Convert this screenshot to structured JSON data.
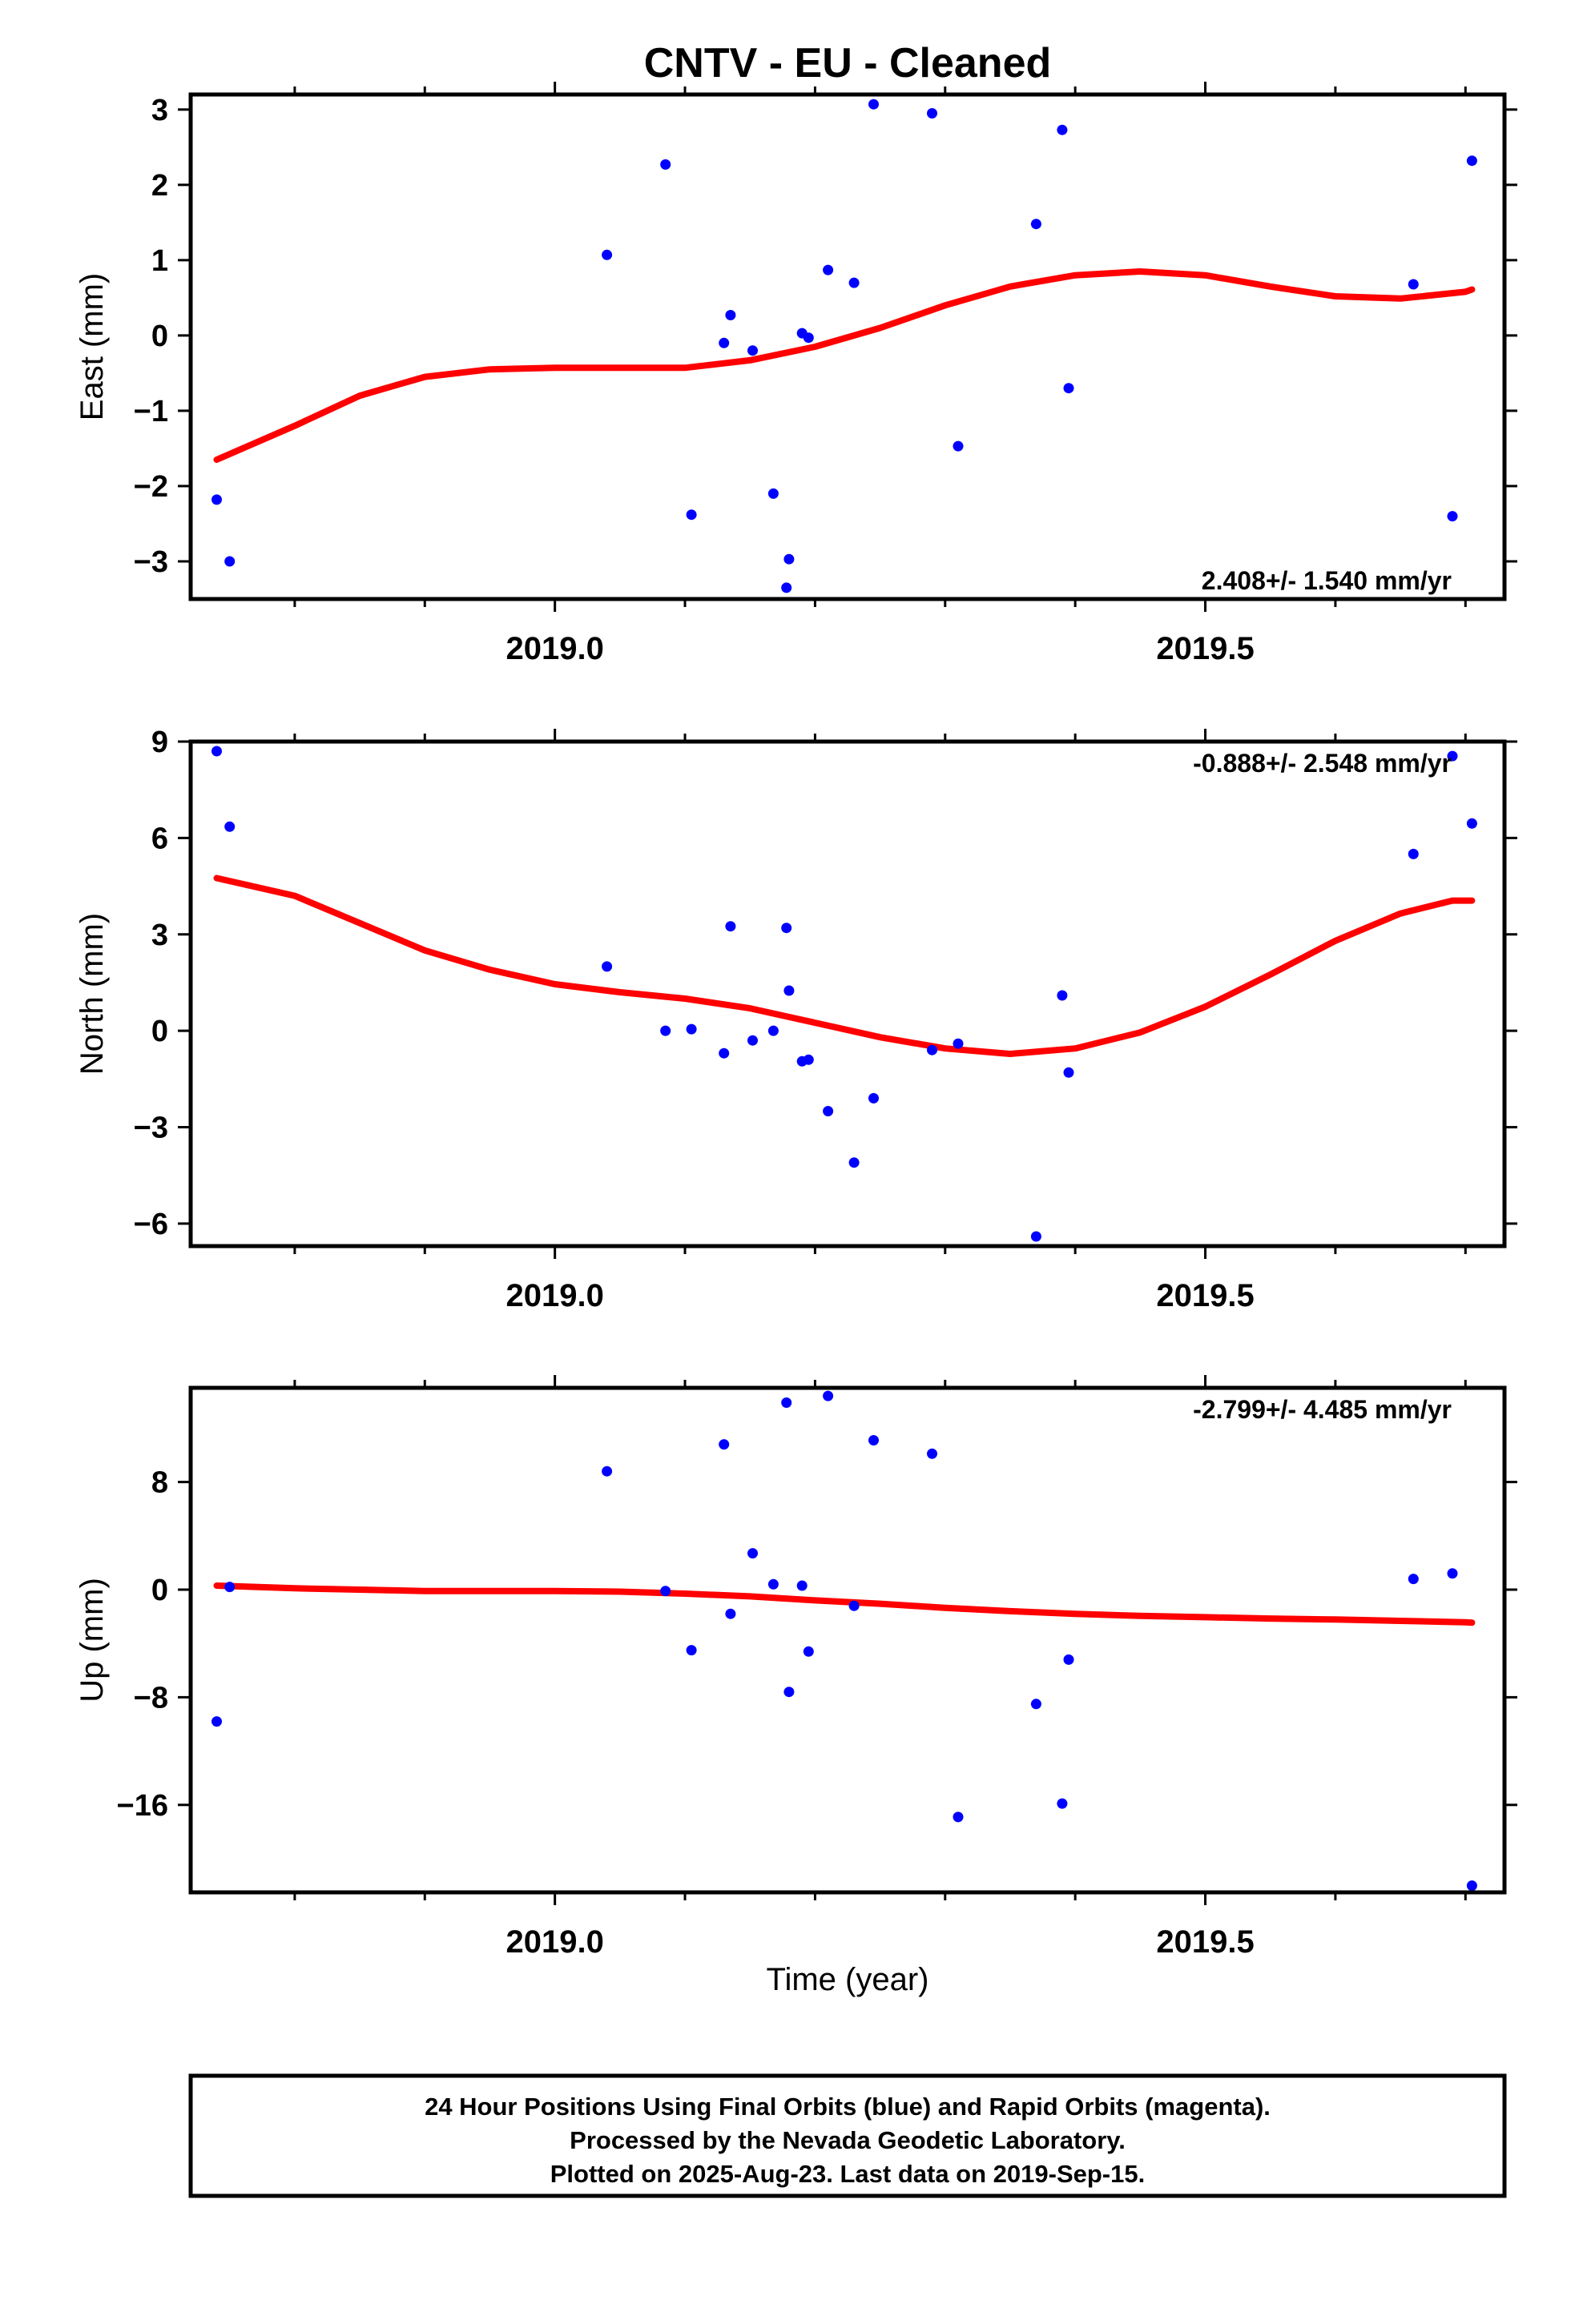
{
  "chart_data": {
    "type": "scatter",
    "title": "CNTV  - EU - Cleaned",
    "xlabel": "Time (year)",
    "xlim": [
      2018.72,
      2019.73
    ],
    "x_tick_labels": [
      "2019.0",
      "2019.5"
    ],
    "x_ticks": [
      2019.0,
      2019.5
    ],
    "x_minor_ticks": [
      2018.8,
      2018.9,
      2019.1,
      2019.2,
      2019.3,
      2019.4,
      2019.6,
      2019.7
    ],
    "grid": false,
    "colors": {
      "points": "#0000ff",
      "model": "#ff0000",
      "frame": "#000000"
    },
    "panels": [
      {
        "name": "east",
        "ylabel": "East (mm)",
        "ylim": [
          -3.5,
          3.2
        ],
        "yticks": [
          3,
          2,
          1,
          0,
          -1,
          -2,
          -3
        ],
        "ytick_labels": [
          "3",
          "2",
          "1",
          "0",
          "−1",
          "−2",
          "−3"
        ],
        "rate": "2.408+/- 1.540 mm/yr",
        "rate_position": "bottom-right",
        "points": [
          [
            2018.74,
            -2.18
          ],
          [
            2018.75,
            -3.0
          ],
          [
            2019.04,
            1.07
          ],
          [
            2019.085,
            2.27
          ],
          [
            2019.105,
            -2.38
          ],
          [
            2019.13,
            -0.1
          ],
          [
            2019.135,
            0.27
          ],
          [
            2019.152,
            -0.2
          ],
          [
            2019.168,
            -2.1
          ],
          [
            2019.18,
            -2.97
          ],
          [
            2019.178,
            -3.35
          ],
          [
            2019.19,
            0.03
          ],
          [
            2019.195,
            -0.03
          ],
          [
            2019.21,
            0.87
          ],
          [
            2019.23,
            0.7
          ],
          [
            2019.245,
            3.07
          ],
          [
            2019.29,
            2.95
          ],
          [
            2019.31,
            -1.47
          ],
          [
            2019.37,
            1.48
          ],
          [
            2019.39,
            2.73
          ],
          [
            2019.395,
            -0.7
          ],
          [
            2019.66,
            0.68
          ],
          [
            2019.69,
            -2.4
          ],
          [
            2019.705,
            2.32
          ]
        ],
        "model": [
          [
            2018.74,
            -1.65
          ],
          [
            2018.8,
            -1.2
          ],
          [
            2018.85,
            -0.8
          ],
          [
            2018.9,
            -0.55
          ],
          [
            2018.95,
            -0.45
          ],
          [
            2019.0,
            -0.43
          ],
          [
            2019.05,
            -0.43
          ],
          [
            2019.1,
            -0.43
          ],
          [
            2019.15,
            -0.33
          ],
          [
            2019.2,
            -0.15
          ],
          [
            2019.25,
            0.1
          ],
          [
            2019.3,
            0.4
          ],
          [
            2019.35,
            0.65
          ],
          [
            2019.4,
            0.8
          ],
          [
            2019.45,
            0.85
          ],
          [
            2019.5,
            0.8
          ],
          [
            2019.55,
            0.65
          ],
          [
            2019.6,
            0.52
          ],
          [
            2019.65,
            0.49
          ],
          [
            2019.7,
            0.58
          ],
          [
            2019.705,
            0.61
          ]
        ]
      },
      {
        "name": "north",
        "ylabel": "North (mm)",
        "ylim": [
          -6.7,
          9.0
        ],
        "yticks": [
          9,
          6,
          3,
          0,
          -3,
          -6
        ],
        "ytick_labels": [
          "9",
          "6",
          "3",
          "0",
          "−3",
          "−6"
        ],
        "rate": "-0.888+/- 2.548 mm/yr",
        "rate_position": "top-right",
        "points": [
          [
            2018.74,
            8.7
          ],
          [
            2018.75,
            6.35
          ],
          [
            2019.04,
            2.0
          ],
          [
            2019.085,
            0.0
          ],
          [
            2019.105,
            0.05
          ],
          [
            2019.13,
            -0.7
          ],
          [
            2019.135,
            3.25
          ],
          [
            2019.152,
            -0.3
          ],
          [
            2019.168,
            0.0
          ],
          [
            2019.178,
            3.2
          ],
          [
            2019.18,
            1.25
          ],
          [
            2019.19,
            -0.95
          ],
          [
            2019.195,
            -0.9
          ],
          [
            2019.21,
            -2.5
          ],
          [
            2019.23,
            -4.1
          ],
          [
            2019.245,
            -2.1
          ],
          [
            2019.29,
            -0.6
          ],
          [
            2019.31,
            -0.4
          ],
          [
            2019.37,
            -6.4
          ],
          [
            2019.39,
            1.1
          ],
          [
            2019.395,
            -1.3
          ],
          [
            2019.66,
            5.5
          ],
          [
            2019.69,
            8.55
          ],
          [
            2019.705,
            6.45
          ]
        ],
        "model": [
          [
            2018.74,
            4.75
          ],
          [
            2018.8,
            4.2
          ],
          [
            2018.85,
            3.35
          ],
          [
            2018.9,
            2.5
          ],
          [
            2018.95,
            1.9
          ],
          [
            2019.0,
            1.45
          ],
          [
            2019.05,
            1.2
          ],
          [
            2019.1,
            1.0
          ],
          [
            2019.15,
            0.7
          ],
          [
            2019.2,
            0.25
          ],
          [
            2019.25,
            -0.2
          ],
          [
            2019.3,
            -0.55
          ],
          [
            2019.35,
            -0.72
          ],
          [
            2019.4,
            -0.55
          ],
          [
            2019.45,
            -0.05
          ],
          [
            2019.5,
            0.75
          ],
          [
            2019.55,
            1.75
          ],
          [
            2019.6,
            2.8
          ],
          [
            2019.65,
            3.65
          ],
          [
            2019.69,
            4.05
          ],
          [
            2019.705,
            4.05
          ]
        ]
      },
      {
        "name": "up",
        "ylabel": "Up (mm)",
        "ylim": [
          -22.5,
          15.0
        ],
        "yticks": [
          8,
          0,
          -8,
          -16
        ],
        "ytick_labels": [
          "8",
          "0",
          "−8",
          "−16"
        ],
        "rate": "-2.799+/- 4.485 mm/yr",
        "rate_position": "top-right",
        "points": [
          [
            2018.74,
            -9.8
          ],
          [
            2018.75,
            0.2
          ],
          [
            2019.04,
            8.8
          ],
          [
            2019.085,
            -0.1
          ],
          [
            2019.105,
            -4.5
          ],
          [
            2019.13,
            10.8
          ],
          [
            2019.135,
            -1.8
          ],
          [
            2019.152,
            2.7
          ],
          [
            2019.168,
            0.4
          ],
          [
            2019.178,
            13.9
          ],
          [
            2019.18,
            -7.6
          ],
          [
            2019.19,
            0.3
          ],
          [
            2019.195,
            -4.6
          ],
          [
            2019.21,
            14.4
          ],
          [
            2019.23,
            -1.2
          ],
          [
            2019.245,
            11.1
          ],
          [
            2019.29,
            10.1
          ],
          [
            2019.31,
            -16.9
          ],
          [
            2019.37,
            -8.5
          ],
          [
            2019.39,
            -15.9
          ],
          [
            2019.395,
            -5.2
          ],
          [
            2019.66,
            0.8
          ],
          [
            2019.69,
            1.2
          ],
          [
            2019.705,
            -22.0
          ]
        ],
        "model": [
          [
            2018.74,
            0.3
          ],
          [
            2018.8,
            0.1
          ],
          [
            2018.9,
            -0.1
          ],
          [
            2019.0,
            -0.1
          ],
          [
            2019.05,
            -0.15
          ],
          [
            2019.1,
            -0.3
          ],
          [
            2019.15,
            -0.5
          ],
          [
            2019.2,
            -0.8
          ],
          [
            2019.25,
            -1.05
          ],
          [
            2019.3,
            -1.35
          ],
          [
            2019.35,
            -1.6
          ],
          [
            2019.4,
            -1.8
          ],
          [
            2019.45,
            -1.95
          ],
          [
            2019.5,
            -2.05
          ],
          [
            2019.55,
            -2.15
          ],
          [
            2019.6,
            -2.22
          ],
          [
            2019.65,
            -2.32
          ],
          [
            2019.7,
            -2.42
          ],
          [
            2019.705,
            -2.45
          ]
        ]
      }
    ]
  },
  "caption": {
    "line1": "24 Hour Positions Using Final Orbits (blue) and Rapid Orbits (magenta).",
    "line2": "Processed by the Nevada Geodetic Laboratory.",
    "line3": "Plotted on 2025-Aug-23. Last data on 2019-Sep-15."
  }
}
